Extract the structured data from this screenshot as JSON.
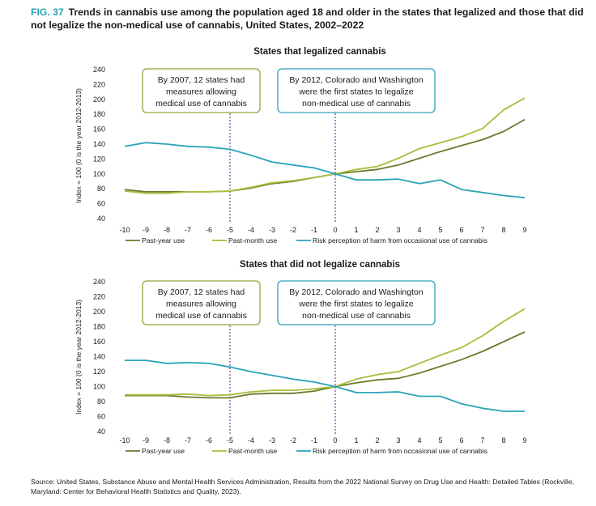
{
  "figure": {
    "label": "FIG. 37",
    "title": "Trends in cannabis use among the population aged 18 and older in the states that legalized and those that did not legalize the non-medical use of cannabis, United States, 2002–2022",
    "source": "Source: United States, Substance Abuse and Mental Health Services Administration, Results from the 2022 National Survey on Drug Use and Health: Detailed Tables (Rockville, Maryland: Center for Behavioral Health Statistics and Quality, 2023)."
  },
  "colors": {
    "past_year": "#6b7a2e",
    "past_month": "#a3bf3c",
    "risk": "#2aa3b8",
    "annotation_green_border": "#8aa83a",
    "annotation_teal_border": "#2aa3b8",
    "marker_line": "#7b3f98"
  },
  "chart_data": [
    {
      "type": "line",
      "title": "States that legalized cannabis",
      "ylabel": "Index = 100 (0 is the year 2012-2013)",
      "xlabel": "",
      "x": [
        -10,
        -9,
        -8,
        -7,
        -6,
        -5,
        -4,
        -3,
        -2,
        -1,
        0,
        1,
        2,
        3,
        4,
        5,
        6,
        7,
        8,
        9
      ],
      "ylim": [
        40,
        240
      ],
      "yticks": [
        40,
        60,
        80,
        100,
        120,
        140,
        160,
        180,
        200,
        220,
        240
      ],
      "grid": false,
      "legend_position": "bottom",
      "series": [
        {
          "name": "Past-year use",
          "color_key": "past_year",
          "values": [
            79,
            76,
            76,
            76,
            76,
            77,
            81,
            87,
            90,
            95,
            100,
            103,
            106,
            112,
            121,
            130,
            138,
            146,
            157,
            173
          ]
        },
        {
          "name": "Past-month use",
          "color_key": "past_month",
          "values": [
            77,
            74,
            74,
            76,
            76,
            77,
            82,
            88,
            91,
            95,
            100,
            106,
            110,
            121,
            134,
            142,
            150,
            161,
            186,
            202
          ]
        },
        {
          "name": "Risk perception of harm from occasional use of cannabis",
          "color_key": "risk",
          "values": [
            137,
            142,
            140,
            137,
            136,
            133,
            125,
            116,
            112,
            108,
            100,
            92,
            92,
            93,
            87,
            92,
            79,
            75,
            71,
            68
          ]
        }
      ],
      "vlines": [
        -5,
        0
      ],
      "annotations": [
        {
          "lines": [
            "By 2007, 12 states had",
            "measures allowing",
            "medical use of cannabis"
          ],
          "border": "annotation_green_border"
        },
        {
          "lines": [
            "By 2012, Colorado and Washington",
            "were the first states to legalize",
            "non-medical use of cannabis"
          ],
          "border": "annotation_teal_border"
        }
      ]
    },
    {
      "type": "line",
      "title": "States that did not legalize cannabis",
      "ylabel": "Index = 100 (0 is the year 2012-2013)",
      "xlabel": "",
      "x": [
        -10,
        -9,
        -8,
        -7,
        -6,
        -5,
        -4,
        -3,
        -2,
        -1,
        0,
        1,
        2,
        3,
        4,
        5,
        6,
        7,
        8,
        9
      ],
      "ylim": [
        40,
        240
      ],
      "yticks": [
        40,
        60,
        80,
        100,
        120,
        140,
        160,
        180,
        200,
        220,
        240
      ],
      "grid": false,
      "legend_position": "bottom",
      "series": [
        {
          "name": "Past-year use",
          "color_key": "past_year",
          "values": [
            88,
            88,
            88,
            86,
            85,
            85,
            90,
            91,
            91,
            94,
            100,
            105,
            109,
            111,
            118,
            127,
            136,
            147,
            160,
            173
          ]
        },
        {
          "name": "Past-month use",
          "color_key": "past_month",
          "values": [
            89,
            89,
            89,
            90,
            88,
            89,
            93,
            95,
            95,
            97,
            100,
            110,
            116,
            120,
            131,
            142,
            152,
            168,
            187,
            204
          ]
        },
        {
          "name": "Risk perception of harm from occasional use of cannabis",
          "color_key": "risk",
          "values": [
            135,
            135,
            131,
            132,
            131,
            126,
            120,
            115,
            110,
            106,
            100,
            92,
            92,
            93,
            87,
            87,
            77,
            71,
            67,
            67
          ]
        }
      ],
      "vlines": [
        -5,
        0
      ],
      "annotations": [
        {
          "lines": [
            "By 2007, 12 states had",
            "measures allowing",
            "medical use of cannabis"
          ],
          "border": "annotation_green_border"
        },
        {
          "lines": [
            "By 2012, Colorado and Washington",
            "were the first states to legalize",
            "non-medical use of cannabis"
          ],
          "border": "annotation_teal_border"
        }
      ]
    }
  ]
}
